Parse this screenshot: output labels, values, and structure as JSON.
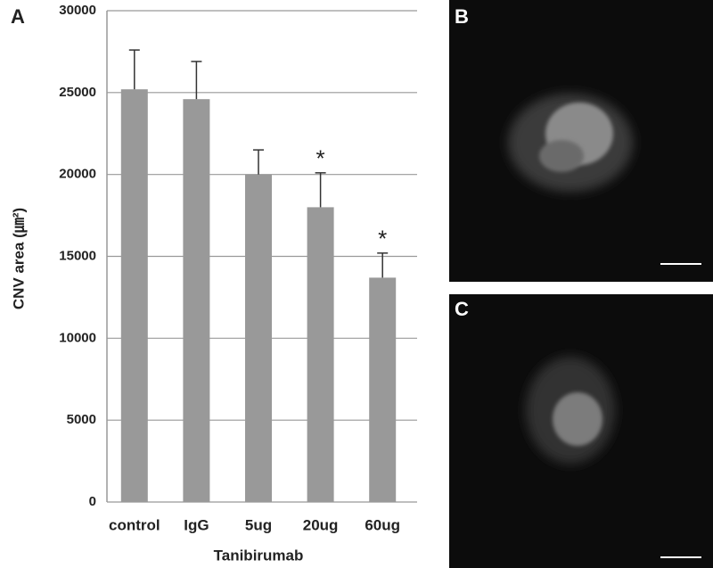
{
  "chart_data": {
    "type": "bar",
    "ylabel": "CNV area (㎛²)",
    "xlabel": "Tanibirumab",
    "categories": [
      "control",
      "IgG",
      "5ug",
      "20ug",
      "60ug"
    ],
    "values": [
      25200,
      24600,
      20000,
      18000,
      13700
    ],
    "errors": [
      2400,
      2300,
      1500,
      2100,
      1500
    ],
    "significance_markers": [
      null,
      null,
      null,
      "*",
      "*"
    ],
    "color": "#999999",
    "ylim": [
      0,
      30000
    ],
    "yticks": [
      0,
      5000,
      10000,
      15000,
      20000,
      25000,
      30000
    ],
    "grid": true
  },
  "panel_labels": [
    "A",
    "B",
    "C"
  ]
}
